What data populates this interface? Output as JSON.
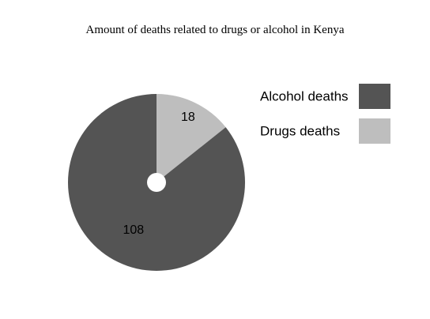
{
  "chart_data": {
    "type": "pie",
    "title": "Amount of deaths related to drugs or alcohol in Kenya",
    "categories": [
      "Alcohol deaths",
      "Drugs deaths"
    ],
    "values": [
      108,
      18
    ],
    "colors": [
      "#545454",
      "#bebebe"
    ],
    "legend": "right",
    "grid": false
  }
}
